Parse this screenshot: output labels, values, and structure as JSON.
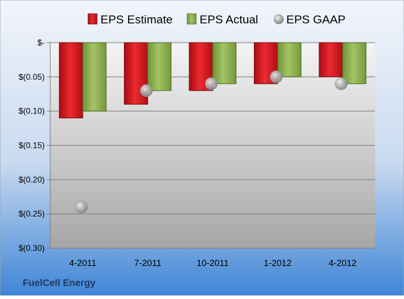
{
  "chart_data": {
    "type": "bar",
    "categories": [
      "4-2011",
      "7-2011",
      "10-2011",
      "1-2012",
      "4-2012"
    ],
    "series": [
      {
        "name": "EPS Estimate",
        "kind": "bar",
        "color": "#e0141c",
        "values": [
          -0.11,
          -0.09,
          -0.07,
          -0.06,
          -0.05
        ]
      },
      {
        "name": "EPS Actual",
        "kind": "bar",
        "color": "#8cb04a",
        "values": [
          -0.1,
          -0.07,
          -0.06,
          -0.05,
          -0.06
        ]
      },
      {
        "name": "EPS GAAP",
        "kind": "marker",
        "color": "#a9a9a9",
        "values": [
          -0.24,
          -0.07,
          -0.06,
          -0.05,
          -0.06
        ]
      }
    ],
    "yticks": [
      {
        "value": 0,
        "label": "$-"
      },
      {
        "value": -0.05,
        "label": "$(0.05)"
      },
      {
        "value": -0.1,
        "label": "$(0.10)"
      },
      {
        "value": -0.15,
        "label": "$(0.15)"
      },
      {
        "value": -0.2,
        "label": "$(0.20)"
      },
      {
        "value": -0.25,
        "label": "$(0.25)"
      },
      {
        "value": -0.3,
        "label": "$(0.30)"
      }
    ],
    "ylim": [
      -0.3,
      0
    ],
    "grid": true,
    "legend_position": "top",
    "company_label": "FuelCell Energy"
  }
}
